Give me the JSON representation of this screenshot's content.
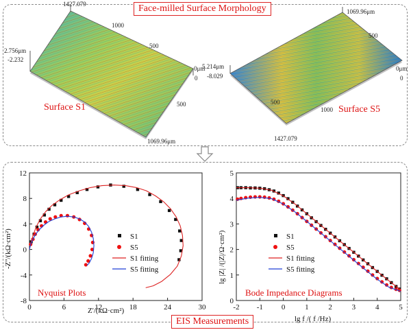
{
  "top_panel": {
    "title": "Face-milled Surface Morphology",
    "s1": {
      "label": "Surface S1",
      "z_top": "2.756μm",
      "z_bottom": "-2.232",
      "x_end": "1427.079",
      "x_tick_1000": "1000",
      "x_tick_500": "500",
      "origin": "0μm",
      "origin_0": "0",
      "y_tick_500": "500",
      "y_end": "1069.96μm"
    },
    "s5": {
      "label": "Surface S5",
      "z_top": "5.214μm",
      "z_bottom": "-8.029",
      "y_end": "1069.96μm",
      "y_tick_500": "500",
      "origin": "0μm",
      "origin_0": "0",
      "x_tick_500": "500",
      "x_tick_1000": "1000",
      "x_end": "1427.079"
    }
  },
  "bottom_panel": {
    "title": "EIS Measurements",
    "nyquist_label": "Nyquist Plots",
    "bode_label": "Bode Impedance Diagrams"
  },
  "colors": {
    "s1": "#111111",
    "s5": "#ee1111",
    "s1_fit": "#dd2222",
    "s5_fit": "#1f3fd6",
    "title_red": "#dd1111"
  },
  "chart_data": [
    {
      "type": "scatter",
      "name": "Nyquist",
      "xlabel": "Z'/(kΩ·cm²)",
      "ylabel": "-Z''/(kΩ·cm²)",
      "xlim": [
        0,
        30
      ],
      "ylim": [
        -8,
        12
      ],
      "x_ticks": [
        0,
        6,
        12,
        18,
        24,
        30
      ],
      "y_ticks": [
        -8,
        -4,
        0,
        4,
        8,
        12
      ],
      "series": [
        {
          "name": "S1",
          "marker": "square",
          "color": "#111111",
          "x": [
            0.3,
            0.8,
            1.3,
            1.9,
            2.6,
            3.4,
            4.4,
            5.5,
            6.8,
            8.3,
            10.0,
            11.9,
            14.1,
            16.4,
            18.8,
            20.9,
            22.8,
            24.3,
            25.4,
            26.1,
            26.4,
            26.3,
            26.0
          ],
          "y": [
            1.2,
            2.4,
            3.5,
            4.5,
            5.4,
            6.3,
            7.0,
            7.7,
            8.3,
            8.9,
            9.4,
            9.8,
            10.1,
            9.9,
            9.4,
            8.6,
            7.5,
            6.1,
            4.7,
            2.9,
            1.4,
            -0.2,
            -1.6
          ]
        },
        {
          "name": "S5",
          "marker": "circle",
          "color": "#ee1111",
          "x": [
            0.2,
            0.6,
            1.0,
            1.5,
            2.1,
            2.8,
            3.6,
            4.5,
            5.5,
            6.6,
            7.7,
            8.7,
            9.6,
            10.3,
            10.8,
            11.0,
            10.9,
            10.6,
            10.2,
            9.8
          ],
          "y": [
            0.8,
            1.6,
            2.4,
            3.1,
            3.7,
            4.3,
            4.8,
            5.1,
            5.3,
            5.3,
            5.1,
            4.7,
            4.1,
            3.2,
            2.2,
            1.1,
            0.0,
            -1.0,
            -1.8,
            -2.4
          ]
        },
        {
          "name": "S1 fitting",
          "marker": "line",
          "color": "#dd2222",
          "x": [
            0.0,
            0.3,
            0.7,
            1.2,
            1.9,
            2.8,
            3.9,
            5.3,
            6.9,
            8.7,
            10.6,
            12.6,
            14.7,
            16.7,
            18.6,
            20.3,
            21.9,
            23.3,
            24.5,
            25.5,
            26.2,
            26.6,
            26.7,
            26.4,
            25.7,
            24.5,
            23.0,
            21.5,
            20.2
          ],
          "y": [
            0.0,
            1.2,
            2.4,
            3.6,
            4.8,
            5.9,
            6.9,
            7.8,
            8.6,
            9.2,
            9.7,
            10.0,
            10.1,
            10.0,
            9.7,
            9.2,
            8.4,
            7.5,
            6.4,
            5.1,
            3.7,
            2.2,
            0.6,
            -1.0,
            -2.6,
            -3.9,
            -5.0,
            -5.7,
            -6.0
          ]
        },
        {
          "name": "S5 fitting",
          "marker": "line",
          "color": "#1f3fd6",
          "x": [
            0.0,
            0.2,
            0.6,
            1.1,
            1.7,
            2.5,
            3.4,
            4.4,
            5.5,
            6.6,
            7.7,
            8.7,
            9.6,
            10.3,
            10.8,
            11.1,
            11.2,
            11.1,
            10.8,
            10.4,
            10.0
          ],
          "y": [
            0.0,
            0.8,
            1.6,
            2.4,
            3.1,
            3.8,
            4.4,
            4.8,
            5.1,
            5.2,
            5.1,
            4.8,
            4.3,
            3.6,
            2.7,
            1.7,
            0.6,
            -0.5,
            -1.4,
            -2.1,
            -2.5
          ]
        }
      ]
    },
    {
      "type": "scatter",
      "name": "Bode",
      "xlabel": "lg f /( f /Hz)",
      "ylabel": "lg |Z| /(|Z|/Ω·cm²)",
      "xlim": [
        -2,
        5
      ],
      "ylim": [
        0,
        5
      ],
      "x_ticks": [
        -2,
        -1,
        0,
        1,
        2,
        3,
        4,
        5
      ],
      "y_ticks": [
        0,
        1,
        2,
        3,
        4,
        5
      ],
      "series": [
        {
          "name": "S1",
          "marker": "square",
          "color": "#111111",
          "x": [
            -1.95,
            -1.8,
            -1.6,
            -1.4,
            -1.2,
            -1.0,
            -0.8,
            -0.6,
            -0.4,
            -0.2,
            0.0,
            0.2,
            0.4,
            0.6,
            0.8,
            1.0,
            1.2,
            1.4,
            1.6,
            1.8,
            2.0,
            2.2,
            2.4,
            2.6,
            2.8,
            3.0,
            3.2,
            3.4,
            3.6,
            3.8,
            4.0,
            4.2,
            4.4,
            4.6,
            4.8,
            4.95
          ],
          "y": [
            4.42,
            4.42,
            4.42,
            4.41,
            4.41,
            4.4,
            4.38,
            4.34,
            4.29,
            4.21,
            4.11,
            3.99,
            3.85,
            3.7,
            3.55,
            3.4,
            3.24,
            3.09,
            2.94,
            2.79,
            2.64,
            2.49,
            2.34,
            2.19,
            2.04,
            1.89,
            1.74,
            1.59,
            1.44,
            1.29,
            1.14,
            0.99,
            0.85,
            0.7,
            0.55,
            0.45
          ]
        },
        {
          "name": "S5",
          "marker": "circle",
          "color": "#ee1111",
          "x": [
            -1.95,
            -1.8,
            -1.6,
            -1.4,
            -1.2,
            -1.0,
            -0.8,
            -0.6,
            -0.4,
            -0.2,
            0.0,
            0.2,
            0.4,
            0.6,
            0.8,
            1.0,
            1.2,
            1.4,
            1.6,
            1.8,
            2.0,
            2.2,
            2.4,
            2.6,
            2.8,
            3.0,
            3.2,
            3.4,
            3.6,
            3.8,
            4.0,
            4.2,
            4.4,
            4.6,
            4.8,
            4.95
          ],
          "y": [
            3.97,
            4.0,
            4.03,
            4.05,
            4.06,
            4.06,
            4.05,
            4.02,
            3.97,
            3.89,
            3.79,
            3.67,
            3.54,
            3.4,
            3.25,
            3.1,
            2.95,
            2.8,
            2.65,
            2.5,
            2.35,
            2.2,
            2.05,
            1.9,
            1.75,
            1.6,
            1.45,
            1.3,
            1.15,
            1.0,
            0.86,
            0.73,
            0.61,
            0.51,
            0.44,
            0.4
          ]
        },
        {
          "name": "S1 fitting",
          "marker": "line",
          "color": "#dd2222",
          "x": [
            -2.0,
            -1.5,
            -1.0,
            -0.5,
            0.0,
            0.5,
            1.0,
            1.5,
            2.0,
            2.5,
            3.0,
            3.5,
            4.0,
            4.5,
            5.0
          ],
          "y": [
            4.42,
            4.42,
            4.4,
            4.32,
            4.1,
            3.78,
            3.4,
            3.02,
            2.64,
            2.26,
            1.89,
            1.51,
            1.14,
            0.77,
            0.42
          ]
        },
        {
          "name": "S5 fitting",
          "marker": "line",
          "color": "#1f3fd6",
          "x": [
            -2.0,
            -1.5,
            -1.0,
            -0.5,
            0.0,
            0.5,
            1.0,
            1.5,
            2.0,
            2.5,
            3.0,
            3.5,
            4.0,
            4.5,
            5.0
          ],
          "y": [
            3.93,
            4.01,
            4.04,
            3.99,
            3.78,
            3.47,
            3.1,
            2.72,
            2.34,
            1.96,
            1.58,
            1.2,
            0.83,
            0.52,
            0.36
          ]
        }
      ]
    }
  ]
}
